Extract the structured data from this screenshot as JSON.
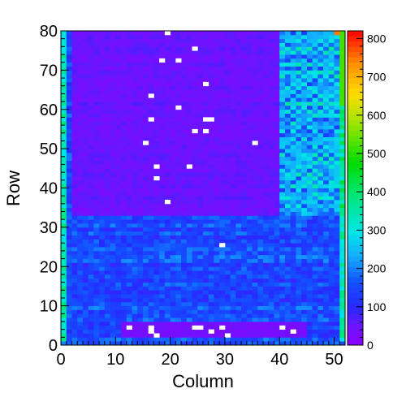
{
  "chart_data": {
    "type": "heatmap",
    "title": "",
    "xlabel": "Column",
    "ylabel": "Row",
    "xlim": [
      0,
      52
    ],
    "ylim": [
      0,
      80
    ],
    "x_ticks": [
      0,
      10,
      20,
      30,
      40,
      50
    ],
    "y_ticks": [
      0,
      10,
      20,
      30,
      40,
      50,
      60,
      70,
      80
    ],
    "colorbar": {
      "min": 0,
      "max": 820,
      "ticks": [
        0,
        100,
        200,
        300,
        400,
        500,
        600,
        700,
        800
      ],
      "palette": "rainbow (violet-blue-cyan-green-yellow-red)"
    },
    "grid": false,
    "regions": [
      {
        "label": "bottom strip",
        "rows": [
          0,
          32
        ],
        "cols": [
          0,
          52
        ],
        "approx_value": 150
      },
      {
        "label": "upper central block",
        "rows": [
          33,
          80
        ],
        "cols": [
          2,
          40
        ],
        "approx_value": 50
      },
      {
        "label": "upper right block",
        "rows": [
          33,
          80
        ],
        "cols": [
          40,
          52
        ],
        "approx_value": 210
      },
      {
        "label": "low-value islands at bottom",
        "rows": [
          2,
          6
        ],
        "cols": [
          11,
          45
        ],
        "approx_value": 40
      }
    ],
    "zero_cells": [
      [
        19,
        79
      ],
      [
        24,
        75
      ],
      [
        18,
        72
      ],
      [
        21,
        72
      ],
      [
        26,
        66
      ],
      [
        16,
        63
      ],
      [
        21,
        60
      ],
      [
        16,
        57
      ],
      [
        26,
        57
      ],
      [
        27,
        57
      ],
      [
        24,
        54
      ],
      [
        26,
        54
      ],
      [
        15,
        51
      ],
      [
        35,
        51
      ],
      [
        17,
        45
      ],
      [
        23,
        45
      ],
      [
        17,
        42
      ],
      [
        19,
        36
      ],
      [
        29,
        25
      ],
      [
        12,
        4
      ],
      [
        16,
        4
      ],
      [
        24,
        4
      ],
      [
        25,
        4
      ],
      [
        29,
        4
      ],
      [
        16,
        3
      ],
      [
        27,
        3
      ],
      [
        17,
        2
      ],
      [
        30,
        2
      ],
      [
        40,
        4
      ],
      [
        42,
        3
      ]
    ],
    "edge_highlights": [
      {
        "label": "top-right hot cell",
        "row": 79,
        "col": 50,
        "approx_value": 750
      }
    ]
  }
}
